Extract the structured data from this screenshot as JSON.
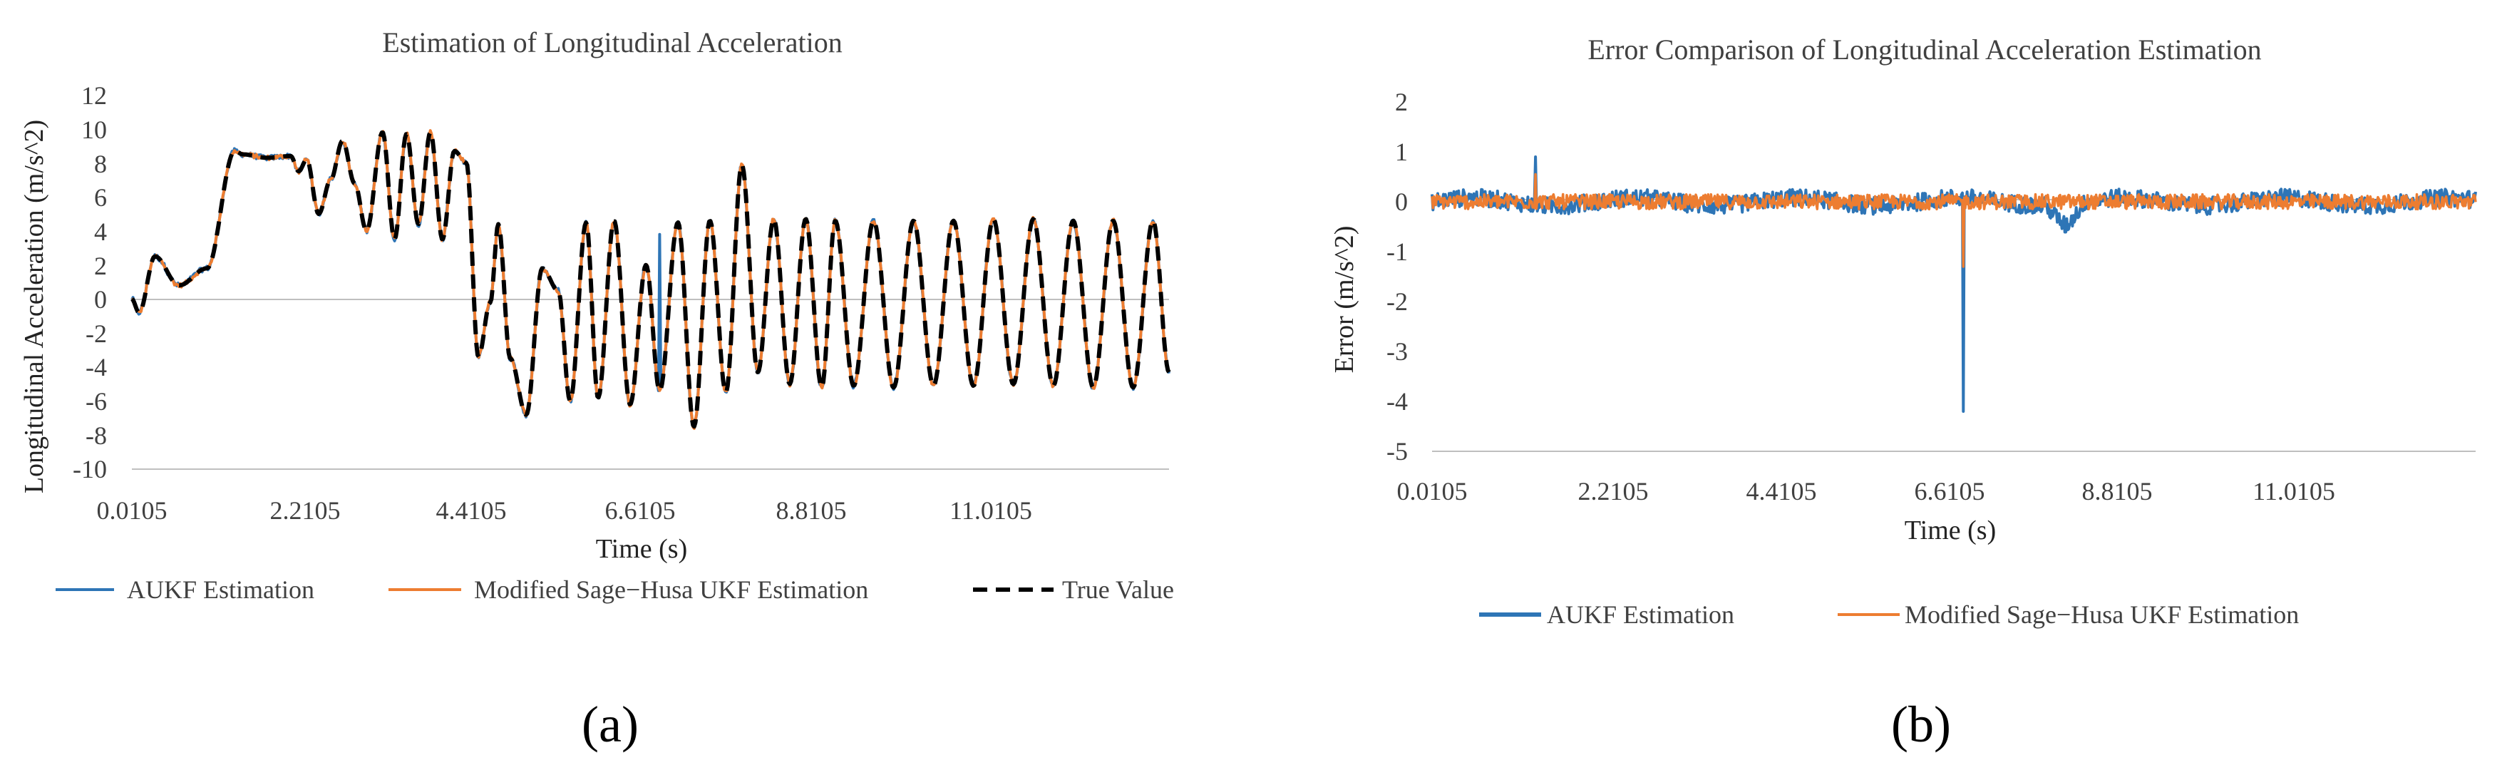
{
  "colors": {
    "aukf": "#2E75B6",
    "sage": "#ED7D31",
    "true_value": "#000000",
    "axis": "#BFBFBF"
  },
  "panel_labels": [
    "(a)",
    "(b)"
  ],
  "chart_data": [
    {
      "type": "line",
      "title": "Estimation of Longitudinal Acceleration",
      "xlabel": "Time (s)",
      "ylabel": "Longitudinal Acceleration (m/s^2)",
      "ylim": [
        -10,
        12
      ],
      "yticks": [
        "12",
        "10",
        "8",
        "6",
        "4",
        "2",
        "0",
        "-2",
        "-4",
        "-6",
        "-8",
        "-10"
      ],
      "xlim": [
        0.0105,
        13.0
      ],
      "xticks": [
        "0.0105",
        "2.2105",
        "4.4105",
        "6.6105",
        "8.8105",
        "11.0105"
      ],
      "legend_position": "bottom",
      "series": [
        {
          "name": "AUKF Estimation",
          "style": "solid"
        },
        {
          "name": "Modified Sage−Husa UKF Estimation",
          "style": "solid"
        },
        {
          "name": "True Value",
          "style": "dashed"
        }
      ],
      "x": [
        0.01,
        0.1,
        0.3,
        0.6,
        0.95,
        1.3,
        1.4,
        1.7,
        2.0,
        2.1,
        2.2,
        2.35,
        2.5,
        2.65,
        2.8,
        2.95,
        3.15,
        3.3,
        3.45,
        3.6,
        3.75,
        3.9,
        4.05,
        4.2,
        4.35,
        4.5,
        4.6,
        4.75,
        4.95,
        5.15,
        5.35,
        5.5,
        5.7,
        5.85,
        6.05,
        6.25,
        6.45,
        6.62,
        6.85,
        7.05,
        7.25,
        7.45,
        7.65,
        7.85,
        8.05,
        8.25,
        8.45,
        8.65,
        8.82,
        9.05,
        9.3,
        9.55,
        9.8,
        10.05,
        10.3,
        10.55,
        10.8,
        11.05,
        11.3,
        11.55,
        11.8,
        12.05,
        12.3,
        12.55,
        12.8,
        13.0
      ],
      "true_value": [
        0,
        -0.8,
        2.5,
        0.8,
        1.8,
        8.7,
        8.5,
        8.3,
        8.4,
        7.5,
        8.2,
        5.0,
        7.0,
        9.3,
        6.8,
        4.0,
        9.8,
        3.5,
        9.7,
        4.4,
        9.8,
        3.5,
        8.7,
        8.0,
        -3.4,
        -0.2,
        4.4,
        -3.5,
        -6.8,
        1.8,
        0.5,
        -6.0,
        4.5,
        -5.8,
        4.6,
        -6.2,
        2.0,
        -5.4,
        4.5,
        -7.5,
        4.6,
        -5.5,
        7.9,
        -4.3,
        4.7,
        -5.0,
        4.7,
        -5.2,
        4.6,
        -5.1,
        4.6,
        -5.2,
        4.6,
        -5.1,
        4.6,
        -5.1,
        4.7,
        -5.0,
        4.7,
        -5.1,
        4.6,
        -5.2,
        4.6,
        -5.2,
        4.6,
        -4.3
      ],
      "aukf_spike": {
        "x": 6.62,
        "value": 3.8
      }
    },
    {
      "type": "line",
      "title": "Error Comparison of Longitudinal Acceleration Estimation",
      "xlabel": "Time (s)",
      "ylabel": "Error (m/s^2)",
      "ylim": [
        -5,
        2
      ],
      "yticks": [
        "2",
        "1",
        "0",
        "-1",
        "-2",
        "-3",
        "-4",
        "-5"
      ],
      "xlim": [
        0.0105,
        13.0
      ],
      "xticks": [
        "0.0105",
        "2.2105",
        "4.4105",
        "6.6105",
        "8.8105",
        "11.0105"
      ],
      "legend_position": "bottom",
      "series": [
        {
          "name": "AUKF Estimation",
          "style": "solid"
        },
        {
          "name": "Modified Sage−Husa UKF Estimation",
          "style": "solid"
        }
      ],
      "aukf_spikes": [
        {
          "x": 1.3,
          "value": 0.9
        },
        {
          "x": 6.62,
          "value": -4.2
        }
      ],
      "sage_spikes": [
        {
          "x": 1.3,
          "value": 0.55
        },
        {
          "x": 6.62,
          "value": -1.3
        }
      ],
      "aukf_dip": {
        "x": 7.9,
        "value": -0.45
      }
    }
  ]
}
